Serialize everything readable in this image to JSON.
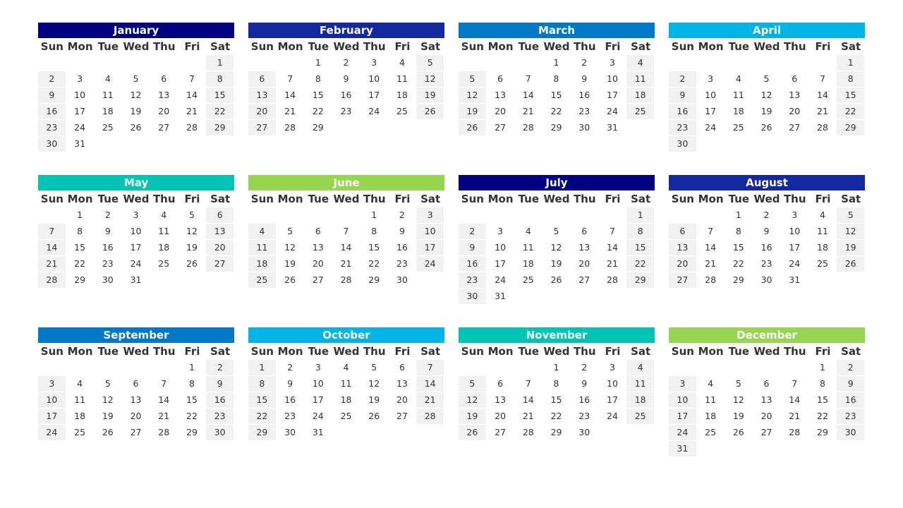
{
  "weekdays": [
    "Sun",
    "Mon",
    "Tue",
    "Wed",
    "Thu",
    "Fri",
    "Sat"
  ],
  "months": [
    {
      "name": "January",
      "color": "#000080",
      "weeks": [
        [
          null,
          null,
          null,
          null,
          null,
          null,
          1
        ],
        [
          2,
          3,
          4,
          5,
          6,
          7,
          8
        ],
        [
          9,
          10,
          11,
          12,
          13,
          14,
          15
        ],
        [
          16,
          17,
          18,
          19,
          20,
          21,
          22
        ],
        [
          23,
          24,
          25,
          26,
          27,
          28,
          29
        ],
        [
          30,
          31
        ]
      ]
    },
    {
      "name": "February",
      "color": "#1428a0",
      "weeks": [
        [
          null,
          null,
          1,
          2,
          3,
          4,
          5
        ],
        [
          6,
          7,
          8,
          9,
          10,
          11,
          12
        ],
        [
          13,
          14,
          15,
          16,
          17,
          18,
          19
        ],
        [
          20,
          21,
          22,
          23,
          24,
          25,
          26
        ],
        [
          27,
          28,
          29
        ]
      ]
    },
    {
      "name": "March",
      "color": "#0078c8",
      "weeks": [
        [
          null,
          null,
          null,
          1,
          2,
          3,
          4
        ],
        [
          5,
          6,
          7,
          8,
          9,
          10,
          11
        ],
        [
          12,
          13,
          14,
          15,
          16,
          17,
          18
        ],
        [
          19,
          20,
          21,
          22,
          23,
          24,
          25
        ],
        [
          26,
          27,
          28,
          29,
          30,
          31
        ]
      ]
    },
    {
      "name": "April",
      "color": "#00b4e6",
      "weeks": [
        [
          null,
          null,
          null,
          null,
          null,
          null,
          1
        ],
        [
          2,
          3,
          4,
          5,
          6,
          7,
          8
        ],
        [
          9,
          10,
          11,
          12,
          13,
          14,
          15
        ],
        [
          16,
          17,
          18,
          19,
          20,
          21,
          22
        ],
        [
          23,
          24,
          25,
          26,
          27,
          28,
          29
        ],
        [
          30
        ]
      ]
    },
    {
      "name": "May",
      "color": "#00c4b4",
      "weeks": [
        [
          null,
          1,
          2,
          3,
          4,
          5,
          6
        ],
        [
          7,
          8,
          9,
          10,
          11,
          12,
          13
        ],
        [
          14,
          15,
          16,
          17,
          18,
          19,
          20
        ],
        [
          21,
          22,
          23,
          24,
          25,
          26,
          27
        ],
        [
          28,
          29,
          30,
          31
        ]
      ]
    },
    {
      "name": "June",
      "color": "#96d550",
      "weeks": [
        [
          null,
          null,
          null,
          null,
          1,
          2,
          3
        ],
        [
          4,
          5,
          6,
          7,
          8,
          9,
          10
        ],
        [
          11,
          12,
          13,
          14,
          15,
          16,
          17
        ],
        [
          18,
          19,
          20,
          21,
          22,
          23,
          24
        ],
        [
          25,
          26,
          27,
          28,
          29,
          30
        ]
      ]
    },
    {
      "name": "July",
      "color": "#000080",
      "weeks": [
        [
          null,
          null,
          null,
          null,
          null,
          null,
          1
        ],
        [
          2,
          3,
          4,
          5,
          6,
          7,
          8
        ],
        [
          9,
          10,
          11,
          12,
          13,
          14,
          15
        ],
        [
          16,
          17,
          18,
          19,
          20,
          21,
          22
        ],
        [
          23,
          24,
          25,
          26,
          27,
          28,
          29
        ],
        [
          30,
          31
        ]
      ]
    },
    {
      "name": "August",
      "color": "#1428a0",
      "weeks": [
        [
          null,
          null,
          1,
          2,
          3,
          4,
          5
        ],
        [
          6,
          7,
          8,
          9,
          10,
          11,
          12
        ],
        [
          13,
          14,
          15,
          16,
          17,
          18,
          19
        ],
        [
          20,
          21,
          22,
          23,
          24,
          25,
          26
        ],
        [
          27,
          28,
          29,
          30,
          31
        ]
      ]
    },
    {
      "name": "September",
      "color": "#0078c8",
      "weeks": [
        [
          null,
          null,
          null,
          null,
          null,
          1,
          2
        ],
        [
          3,
          4,
          5,
          6,
          7,
          8,
          9
        ],
        [
          10,
          11,
          12,
          13,
          14,
          15,
          16
        ],
        [
          17,
          18,
          19,
          20,
          21,
          22,
          23
        ],
        [
          24,
          25,
          26,
          27,
          28,
          29,
          30
        ]
      ]
    },
    {
      "name": "October",
      "color": "#00b4e6",
      "weeks": [
        [
          1,
          2,
          3,
          4,
          5,
          6,
          7
        ],
        [
          8,
          9,
          10,
          11,
          12,
          13,
          14
        ],
        [
          15,
          16,
          17,
          18,
          19,
          20,
          21
        ],
        [
          22,
          23,
          24,
          25,
          26,
          27,
          28
        ],
        [
          29,
          30,
          31
        ]
      ]
    },
    {
      "name": "November",
      "color": "#00c4b4",
      "weeks": [
        [
          null,
          null,
          null,
          1,
          2,
          3,
          4
        ],
        [
          5,
          6,
          7,
          8,
          9,
          10,
          11
        ],
        [
          12,
          13,
          14,
          15,
          16,
          17,
          18
        ],
        [
          19,
          20,
          21,
          22,
          23,
          24,
          25
        ],
        [
          26,
          27,
          28,
          29,
          30
        ]
      ]
    },
    {
      "name": "December",
      "color": "#96d550",
      "weeks": [
        [
          null,
          null,
          null,
          null,
          null,
          1,
          2
        ],
        [
          3,
          4,
          5,
          6,
          7,
          8,
          9
        ],
        [
          10,
          11,
          12,
          13,
          14,
          15,
          16
        ],
        [
          17,
          18,
          19,
          20,
          21,
          22,
          23
        ],
        [
          24,
          25,
          26,
          27,
          28,
          29,
          30
        ],
        [
          31
        ]
      ]
    }
  ]
}
